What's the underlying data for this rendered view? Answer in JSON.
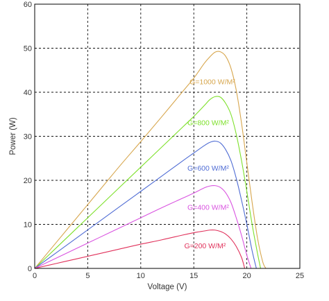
{
  "chart_data": {
    "type": "line",
    "title": "",
    "xlabel": "Voltage (V)",
    "ylabel": "Power (W)",
    "xlim": [
      0,
      25
    ],
    "ylim": [
      0,
      60
    ],
    "xticks": [
      "0",
      "5",
      "10",
      "15",
      "20",
      "25"
    ],
    "yticks": [
      "0",
      "10",
      "20",
      "30",
      "40",
      "50",
      "60"
    ],
    "grid": true,
    "series": [
      {
        "name": "G=1000 W/M²",
        "color": "#d7a64d",
        "x": [
          0,
          2,
          4,
          6,
          8,
          10,
          12,
          14,
          15,
          16,
          16.5,
          17,
          17.5,
          18,
          18.5,
          19,
          19.5,
          20,
          20.5,
          21,
          21.5,
          21.8
        ],
        "y": [
          0,
          5.8,
          11.6,
          17.4,
          23.2,
          28.8,
          34.5,
          40.3,
          43.2,
          46.6,
          48.0,
          49.1,
          49.2,
          48.2,
          45.5,
          40.5,
          33.0,
          24.0,
          15.0,
          7.0,
          1.5,
          0
        ]
      },
      {
        "name": "G=800 W/M²",
        "color": "#7de02a",
        "x": [
          0,
          2,
          4,
          6,
          8,
          10,
          12,
          14,
          15,
          16,
          16.5,
          17,
          17.5,
          18,
          18.5,
          19,
          19.5,
          20,
          20.5,
          21,
          21.3
        ],
        "y": [
          0,
          4.6,
          9.2,
          13.8,
          18.4,
          23.0,
          27.6,
          32.2,
          34.5,
          37.0,
          38.3,
          39.0,
          38.9,
          37.5,
          35.0,
          30.5,
          24.5,
          17.5,
          10.0,
          3.5,
          0
        ]
      },
      {
        "name": "G=600 W/M²",
        "color": "#4f6cd4",
        "x": [
          0,
          2,
          4,
          6,
          8,
          10,
          12,
          14,
          15,
          16,
          16.5,
          17,
          17.5,
          18,
          18.5,
          19,
          19.5,
          20,
          20.5,
          20.9
        ],
        "y": [
          0,
          3.5,
          7.0,
          10.5,
          14.0,
          17.5,
          21.0,
          24.5,
          26.2,
          27.9,
          28.6,
          28.9,
          28.5,
          27.0,
          24.5,
          20.5,
          15.5,
          10.0,
          4.0,
          0
        ]
      },
      {
        "name": "G=400 W/M²",
        "color": "#d953e0",
        "x": [
          0,
          2,
          4,
          6,
          8,
          10,
          12,
          14,
          15,
          16,
          16.5,
          17,
          17.5,
          18,
          18.5,
          19,
          19.5,
          20,
          20.4
        ],
        "y": [
          0,
          2.3,
          4.6,
          6.9,
          9.2,
          11.5,
          13.8,
          16.0,
          17.1,
          18.3,
          18.7,
          18.8,
          18.4,
          17.2,
          15.0,
          11.5,
          7.5,
          3.0,
          0
        ]
      },
      {
        "name": "G=200 W/M²",
        "color": "#e0305a",
        "x": [
          0,
          2,
          4,
          6,
          8,
          10,
          12,
          14,
          15,
          16,
          16.5,
          17,
          17.5,
          18,
          18.5,
          19,
          19.5,
          19.8
        ],
        "y": [
          0,
          1.1,
          2.2,
          3.3,
          4.4,
          5.5,
          6.5,
          7.6,
          8.1,
          8.5,
          8.7,
          8.7,
          8.4,
          7.8,
          6.7,
          5.0,
          2.5,
          0
        ]
      }
    ]
  }
}
